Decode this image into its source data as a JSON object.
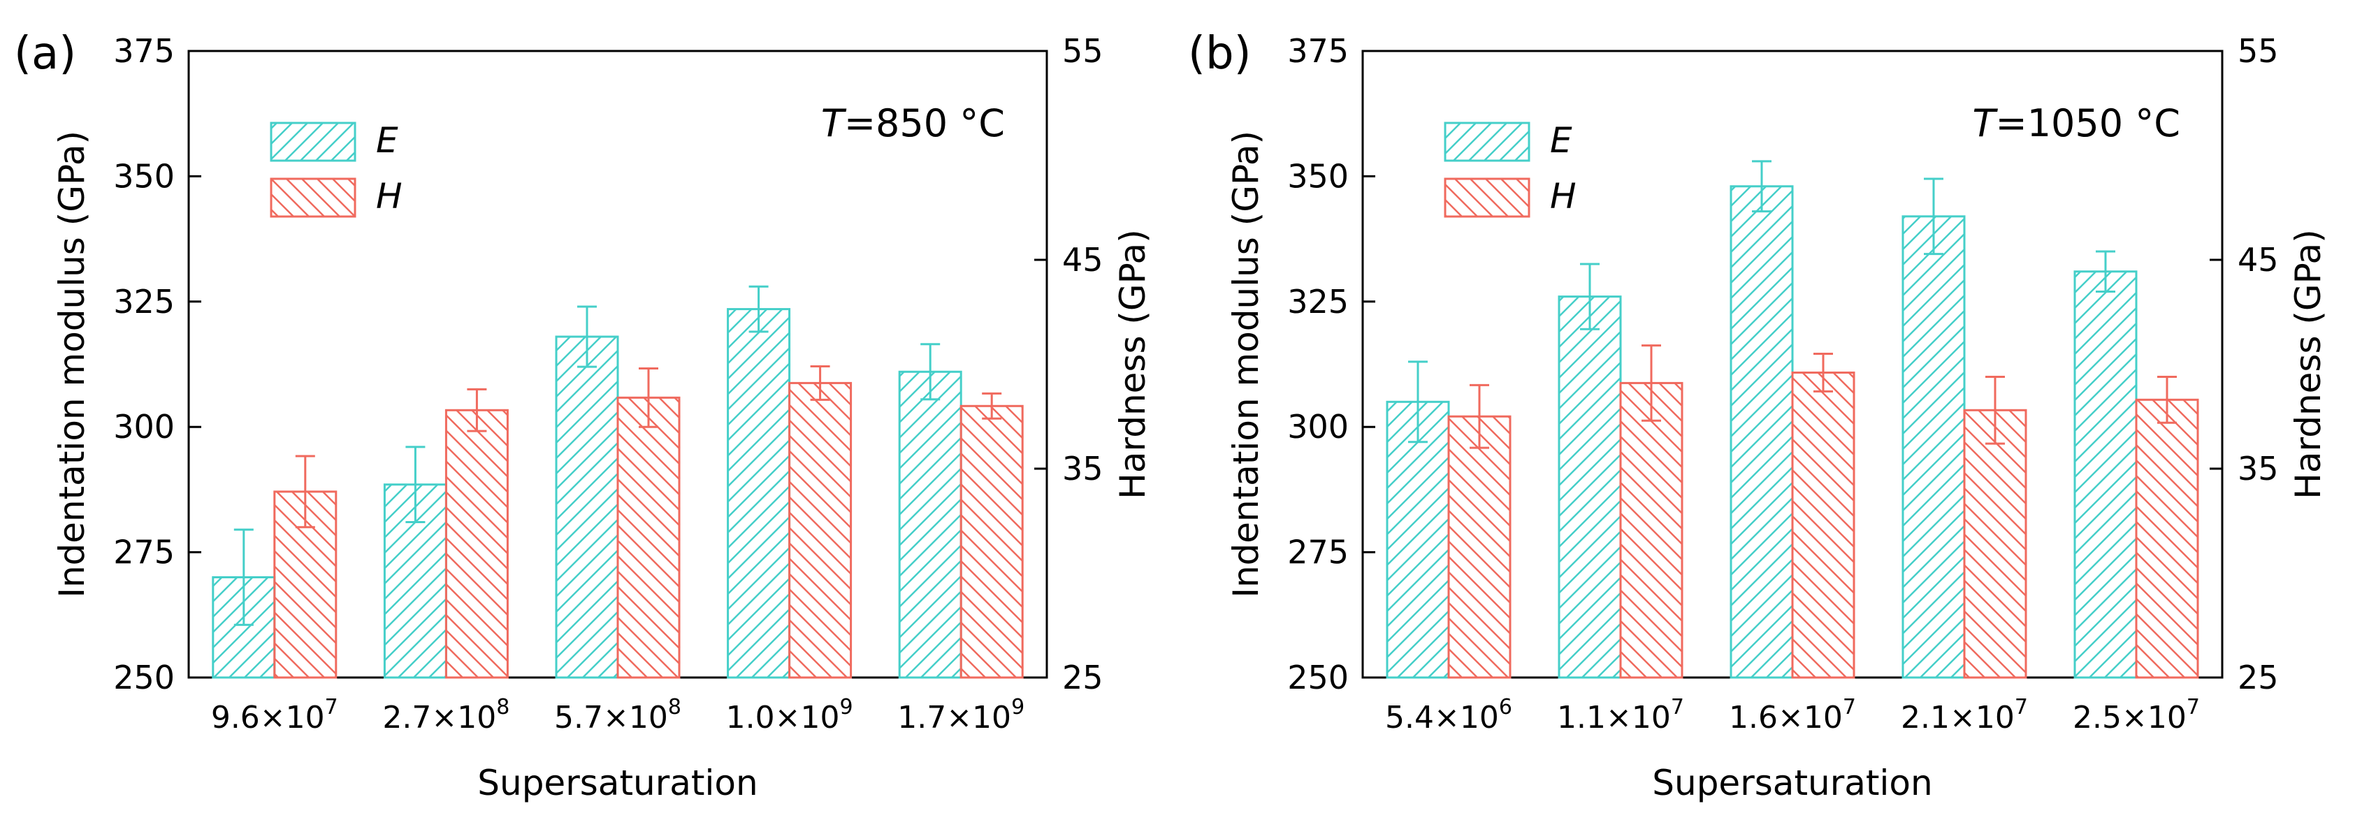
{
  "chart_data": [
    {
      "type": "bar",
      "panel_label": "(a)",
      "annotation": {
        "symbol": "T",
        "text": "=850 °C"
      },
      "xlabel": "Supersaturation",
      "ylabel": "Indentation modulus (GPa)",
      "y2label": "Hardness (GPa)",
      "ylim": [
        250,
        375
      ],
      "y2lim": [
        25,
        55
      ],
      "yticks": [
        "250",
        "275",
        "300",
        "325",
        "350",
        "375"
      ],
      "y2ticks": [
        "25",
        "35",
        "45",
        "55"
      ],
      "categories": [
        {
          "mant": "9.6×10",
          "exp": "7"
        },
        {
          "mant": "2.7×10",
          "exp": "8"
        },
        {
          "mant": "5.7×10",
          "exp": "8"
        },
        {
          "mant": "1.0×10",
          "exp": "9"
        },
        {
          "mant": "1.7×10",
          "exp": "9"
        }
      ],
      "series": [
        {
          "name": "E",
          "axis": "left",
          "color": "#45cfc9",
          "values": [
            270,
            288.5,
            318,
            323.5,
            311
          ],
          "errors": [
            9.5,
            7.5,
            6,
            4.5,
            5.5
          ]
        },
        {
          "name": "H",
          "axis": "right",
          "color": "#f06a5e",
          "values": [
            33.9,
            37.8,
            38.4,
            39.1,
            38.0
          ],
          "errors": [
            1.7,
            1.0,
            1.4,
            0.8,
            0.6
          ]
        }
      ]
    },
    {
      "type": "bar",
      "panel_label": "(b)",
      "annotation": {
        "symbol": "T",
        "text": "=1050 °C"
      },
      "xlabel": "Supersaturation",
      "ylabel": "Indentation modulus (GPa)",
      "y2label": "Hardness (GPa)",
      "ylim": [
        250,
        375
      ],
      "y2lim": [
        25,
        55
      ],
      "yticks": [
        "250",
        "275",
        "300",
        "325",
        "350",
        "375"
      ],
      "y2ticks": [
        "25",
        "35",
        "45",
        "55"
      ],
      "categories": [
        {
          "mant": "5.4×10",
          "exp": "6"
        },
        {
          "mant": "1.1×10",
          "exp": "7"
        },
        {
          "mant": "1.6×10",
          "exp": "7"
        },
        {
          "mant": "2.1×10",
          "exp": "7"
        },
        {
          "mant": "2.5×10",
          "exp": "7"
        }
      ],
      "series": [
        {
          "name": "E",
          "axis": "left",
          "color": "#45cfc9",
          "values": [
            305,
            326,
            348,
            342,
            331
          ],
          "errors": [
            8,
            6.5,
            5,
            7.5,
            4
          ]
        },
        {
          "name": "H",
          "axis": "right",
          "color": "#f06a5e",
          "values": [
            37.5,
            39.1,
            39.6,
            37.8,
            38.3
          ],
          "errors": [
            1.5,
            1.8,
            0.9,
            1.6,
            1.1
          ]
        }
      ]
    }
  ]
}
